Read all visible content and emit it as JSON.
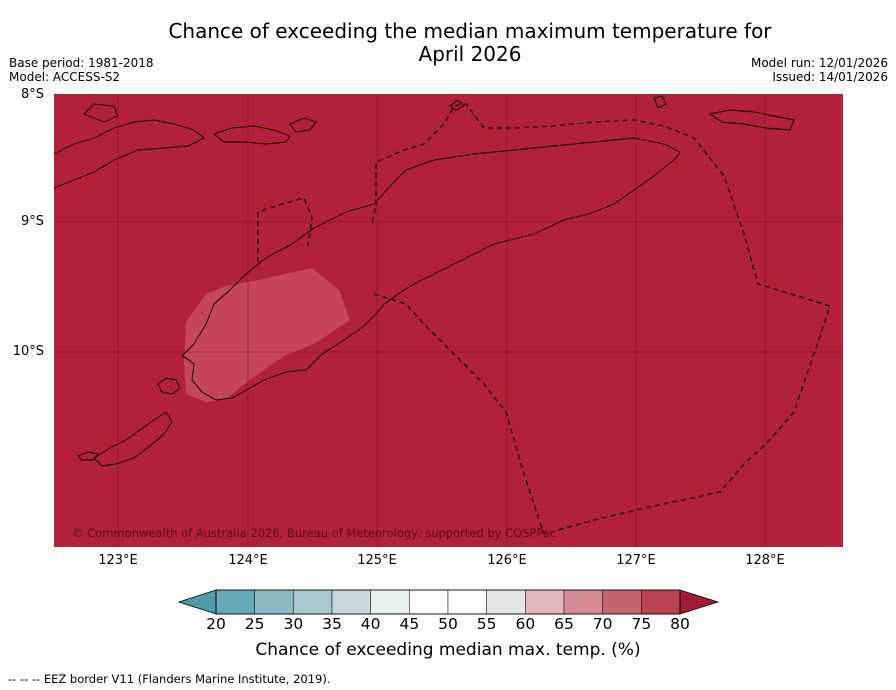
{
  "title": {
    "line1": "Chance of exceeding the median maximum temperature for",
    "line2": "April 2026"
  },
  "meta": {
    "base_period": "Base period: 1981-2018",
    "model": "Model: ACCESS-S2",
    "model_run": "Model run: 12/01/2026",
    "issued": "Issued: 14/01/2026"
  },
  "map": {
    "lat_labels": [
      "8°S",
      "9°S",
      "10°S"
    ],
    "lon_labels": [
      "123°E",
      "124°E",
      "125°E",
      "126°E",
      "127°E",
      "128°E"
    ],
    "fill_color": "#b2203a",
    "patch_color": "#c84e5e",
    "copyright": "© Commonwealth of Australia 2026, Bureau of Meteorology, supported by COSPPac"
  },
  "colorbar": {
    "ticks": [
      "20",
      "25",
      "30",
      "35",
      "40",
      "45",
      "50",
      "55",
      "60",
      "65",
      "70",
      "75",
      "80"
    ],
    "under_color": "#4f9aa9",
    "over_color": "#a31a35",
    "colors": [
      "#66a9b8",
      "#8bbac5",
      "#a8c8cd",
      "#c7d8dc",
      "#e6eff1",
      "#ffffff",
      "#ffffff",
      "#e6e6e6",
      "#e3b7be",
      "#d48a94",
      "#c6646f",
      "#bb424f"
    ],
    "label": "Chance of exceeding median max. temp. (%)"
  },
  "footer": "--  --  -- EEZ border V11 (Flanders Marine Institute, 2019)."
}
